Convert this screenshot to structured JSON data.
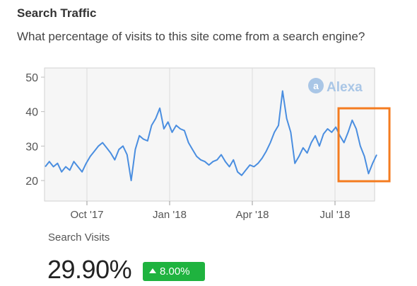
{
  "section": {
    "title": "Search Traffic",
    "subtitle": "What percentage of visits to this site come from a search engine?"
  },
  "watermark": {
    "text": "Alexa",
    "icon": "alexa-logo-icon"
  },
  "metric": {
    "label": "Search Visits",
    "value": "29.90%",
    "change": "8.00%",
    "change_direction": "up",
    "change_color": "#1fb33f"
  },
  "highlight": {
    "color": "#f47c20",
    "start": "Jul 18 '18",
    "end": "Aug 27 '18"
  },
  "chart_data": {
    "type": "line",
    "title": "",
    "xlabel": "",
    "ylabel": "",
    "ylim": [
      15,
      52
    ],
    "yticks": [
      20,
      30,
      40,
      50
    ],
    "xticks": [
      "Oct '17",
      "Jan '18",
      "Apr '18",
      "Jul '18"
    ],
    "x_range": [
      "Aug 27 '17",
      "Aug 27 '18"
    ],
    "grid": "vertical",
    "line_color": "#4a8ee0",
    "series": [
      {
        "name": "",
        "x_unit": "week",
        "x_start": "Aug 27 '17",
        "values": [
          24,
          25.5,
          24,
          25,
          22.5,
          24,
          23,
          25.5,
          24,
          22.5,
          25,
          27,
          28.5,
          30,
          31,
          29.5,
          28,
          26,
          29,
          30,
          27.5,
          20,
          29,
          33,
          32,
          31.5,
          36,
          38,
          41,
          35,
          37,
          34,
          36,
          35,
          34.5,
          31,
          29,
          27,
          26,
          25.5,
          24.5,
          25.5,
          26,
          27.5,
          25.5,
          24,
          26,
          22.5,
          21.5,
          23,
          24.5,
          24,
          25,
          26.5,
          28.5,
          31,
          34,
          36,
          46,
          38,
          34,
          25,
          27,
          29.5,
          28,
          31,
          33,
          30,
          33.5,
          35,
          34,
          35.5,
          33,
          31,
          34,
          37.5,
          35,
          30,
          27,
          22,
          25,
          27.5
        ]
      }
    ]
  }
}
